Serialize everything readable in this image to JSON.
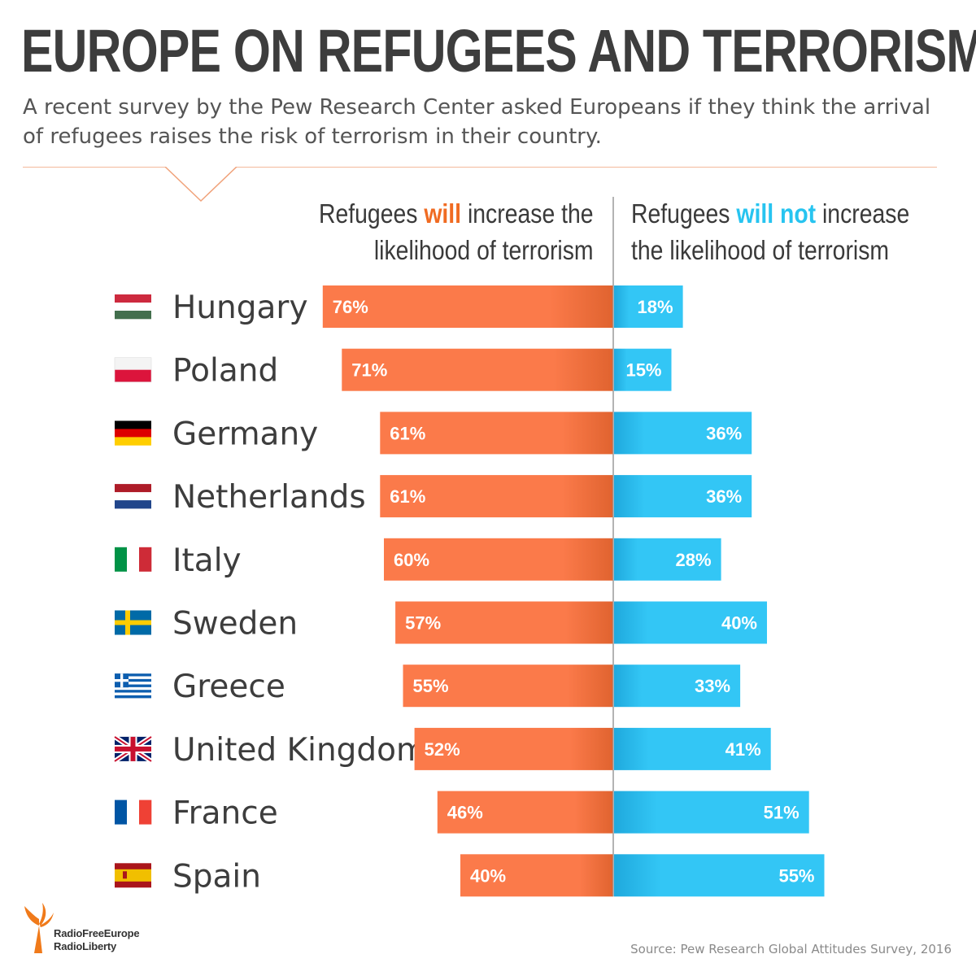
{
  "header": {
    "title": "EUROPE ON REFUGEES AND TERRORISM",
    "subtitle": "A recent survey by the Pew Research Center asked Europeans if they think the arrival of refugees raises the risk of terrorism in their country."
  },
  "columns": {
    "left": {
      "pre": "Refugees ",
      "highlight": "will",
      "post": " increase the",
      "line2": "likelihood of terrorism"
    },
    "right": {
      "pre": "Refugees ",
      "highlight": "will not",
      "post": " increase",
      "line2": "the likelihood of terrorism"
    }
  },
  "colors": {
    "orange": "#fb7a4a",
    "orange_dark": "#e0632f",
    "blue": "#33c6f5",
    "blue_dark": "#1fa9dd",
    "divider": "#f0a27a",
    "axis": "#9a9a9a"
  },
  "chart_data": {
    "type": "bar",
    "orientation": "horizontal-diverging",
    "title": "EUROPE ON REFUGEES AND TERRORISM",
    "categories": [
      "Hungary",
      "Poland",
      "Germany",
      "Netherlands",
      "Italy",
      "Sweden",
      "Greece",
      "United Kingdom",
      "France",
      "Spain"
    ],
    "flags": [
      "flag-hungary-icon",
      "flag-poland-icon",
      "flag-germany-icon",
      "flag-netherlands-icon",
      "flag-italy-icon",
      "flag-sweden-icon",
      "flag-greece-icon",
      "flag-uk-icon",
      "flag-france-icon",
      "flag-spain-icon"
    ],
    "series": [
      {
        "name": "Refugees will increase the likelihood of terrorism",
        "values": [
          76,
          71,
          61,
          61,
          60,
          57,
          55,
          52,
          46,
          40
        ],
        "labels": [
          "76%",
          "71%",
          "61%",
          "61%",
          "60%",
          "57%",
          "55%",
          "52%",
          "46%",
          "40%"
        ]
      },
      {
        "name": "Refugees will not increase the likelihood of terrorism",
        "values": [
          18,
          15,
          36,
          36,
          28,
          40,
          33,
          41,
          51,
          55
        ],
        "labels": [
          "18%",
          "15%",
          "36%",
          "36%",
          "28%",
          "40%",
          "33%",
          "41%",
          "51%",
          "55%"
        ]
      }
    ],
    "unit": "%"
  },
  "footer": {
    "source": "Source: Pew Research Global Attitudes Survey, 2016",
    "logo_line1": "RadioFreeEurope",
    "logo_line2": "RadioLiberty",
    "logo_icon": "torch-icon"
  }
}
